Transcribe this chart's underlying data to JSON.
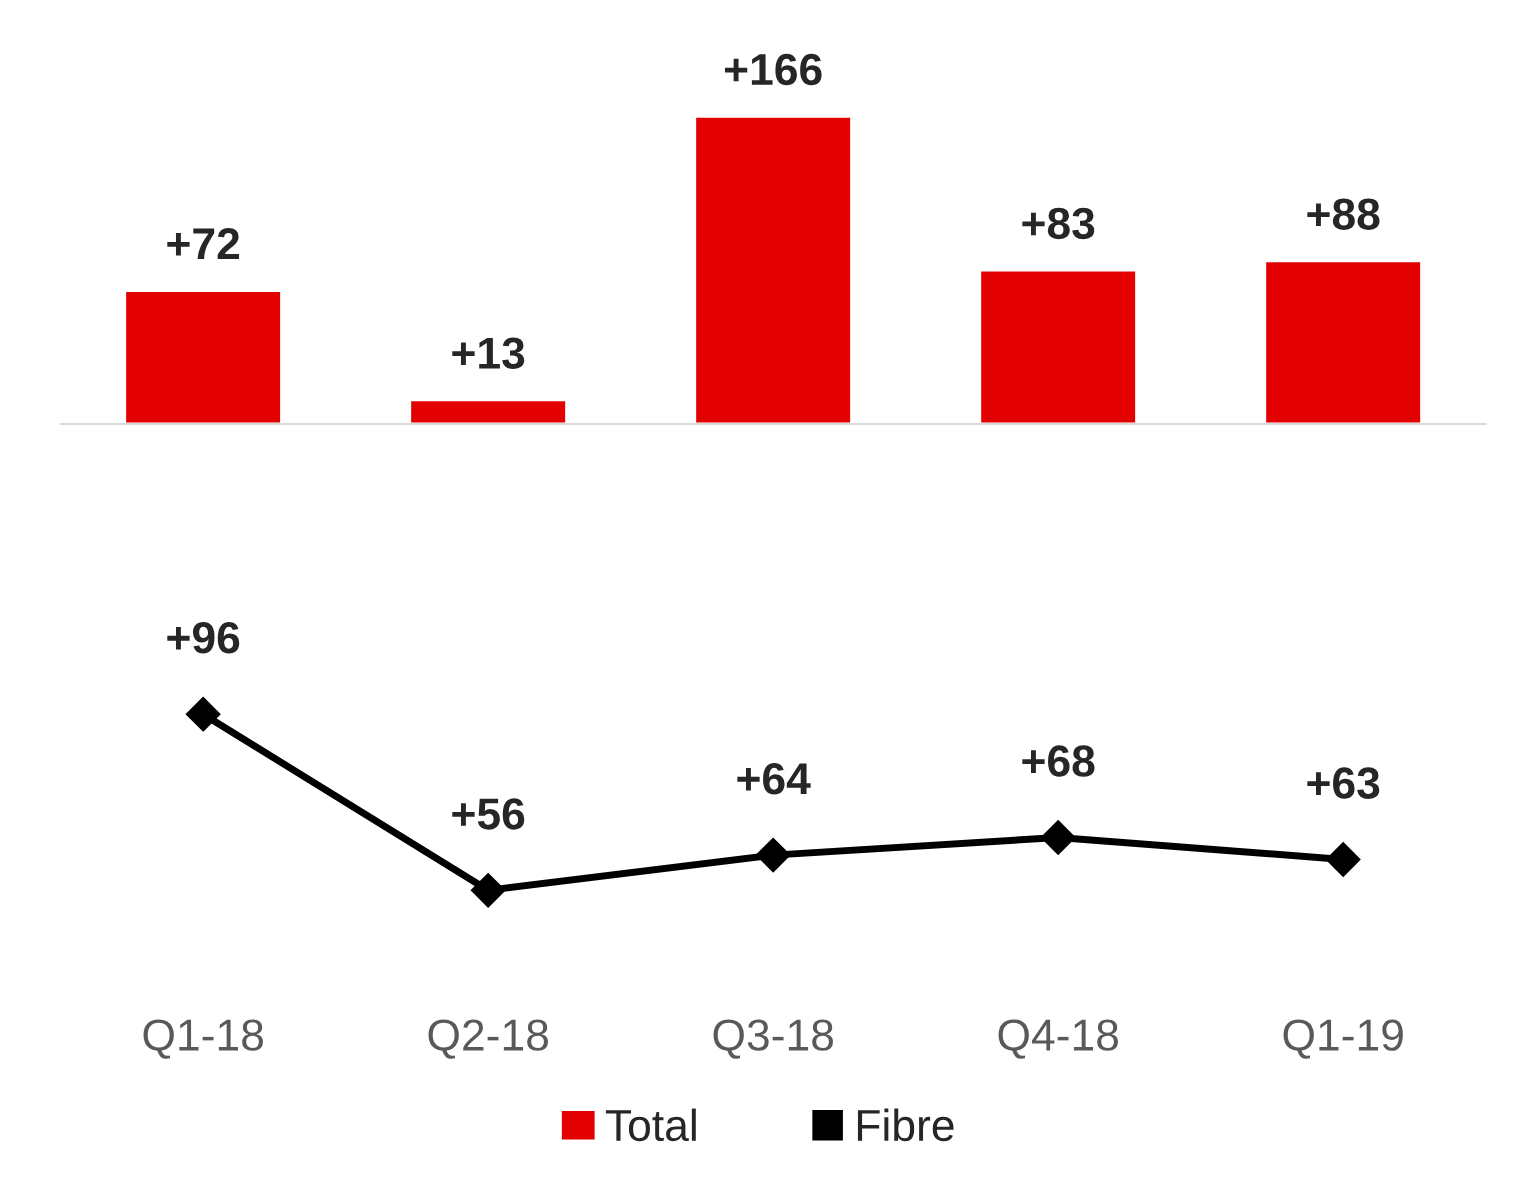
{
  "chart_data": [
    {
      "type": "bar",
      "categories": [
        null,
        null,
        null,
        null,
        null
      ],
      "series": [
        {
          "name": "Total",
          "color": "#e30000",
          "values": [
            72,
            13,
            166,
            83,
            88
          ],
          "value_labels": [
            "+72",
            "+13",
            "+166",
            "+83",
            "+88"
          ]
        }
      ]
    },
    {
      "type": "line",
      "categories": [
        "Q1-18",
        "Q2-18",
        "Q3-18",
        "Q4-18",
        "Q1-19"
      ],
      "tick_labels": "x",
      "marker": "diamond",
      "legend": "bottom",
      "series": [
        {
          "name": "Fibre",
          "color": "#000000",
          "values": [
            96,
            56,
            64,
            68,
            63
          ],
          "value_labels": [
            "+96",
            "+56",
            "+64",
            "+68",
            "+63"
          ]
        }
      ]
    }
  ]
}
